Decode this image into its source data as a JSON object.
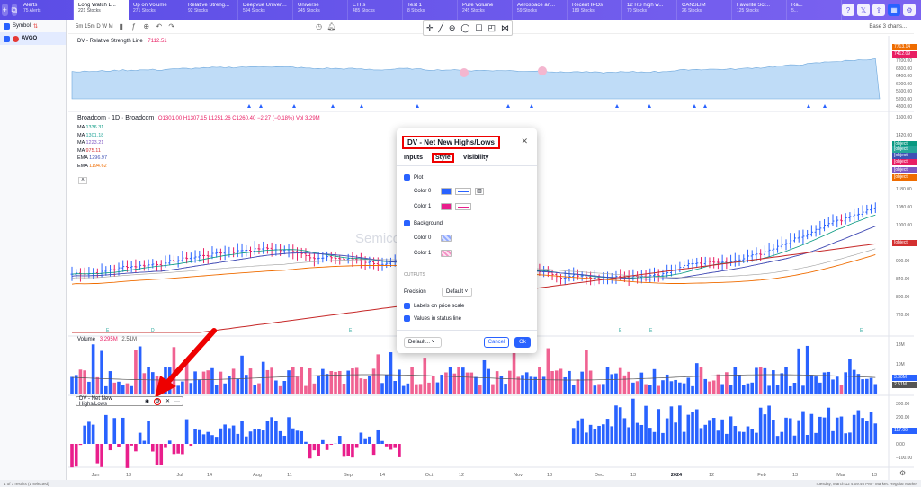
{
  "topbar": {
    "tabs": [
      {
        "name": "Alerts",
        "sub": "75 Alerts"
      },
      {
        "name": "Long Watch L...",
        "sub": "221 Stocks",
        "active": true
      },
      {
        "name": "Up on Volume",
        "sub": "271 Stocks"
      },
      {
        "name": "Relative Streng...",
        "sub": "92 Stocks"
      },
      {
        "name": "Deepvue Univers...",
        "sub": "594 Stocks"
      },
      {
        "name": "Universe",
        "sub": "245 Stocks"
      },
      {
        "name": "ETFs",
        "sub": "485 Stocks"
      },
      {
        "name": "Test 1",
        "sub": "8 Stocks"
      },
      {
        "name": "Pure Volume",
        "sub": "245 Stocks"
      },
      {
        "name": "Aerospace an...",
        "sub": "59 Stocks"
      },
      {
        "name": "Recent IPOs",
        "sub": "189 Stocks"
      },
      {
        "name": "12 RS high w...",
        "sub": "70 Stocks"
      },
      {
        "name": "CANSLIM",
        "sub": "26 Stocks"
      },
      {
        "name": "Favorite Scr...",
        "sub": "125 Stocks"
      },
      {
        "name": "Ra...",
        "sub": "5..."
      }
    ]
  },
  "leftpanel": {
    "symbol_label": "Symbol",
    "ticker": "AVGO"
  },
  "charttools": {
    "intervals": "5m  15m  D  W  M",
    "right_label": "Base 3 charts..."
  },
  "rs_pane": {
    "title": "DV - Relative Strength Line",
    "value": "7112.51",
    "ticks": [
      "7200.00",
      "6800.00",
      "6400.00",
      "6000.00",
      "5600.00",
      "5200.00",
      "4800.00"
    ],
    "labels": [
      "7713.14",
      "7412.09"
    ]
  },
  "price_pane": {
    "title": "Broadcom · 1D · Broadcom",
    "ohlc": "O1301.00 H1307.15 L1251.26 C1260.40 −2.27 (−0.18%) Vol 3.29M",
    "mas": [
      {
        "label": "MA",
        "value": "1336.31",
        "color": "#089981"
      },
      {
        "label": "MA",
        "value": "1301.18",
        "color": "#26a69a"
      },
      {
        "label": "MA",
        "value": "1223.21",
        "color": "#7e57c2"
      },
      {
        "label": "MA",
        "value": "975.11",
        "color": "#d32f2f"
      },
      {
        "label": "EMA",
        "value": "1296.97",
        "color": "#3f51b5"
      },
      {
        "label": "EMA",
        "value": "1194.62",
        "color": "#ef6c00"
      }
    ],
    "watermark": "Semiconductor Equipment",
    "ticks": [
      "1500.00",
      "1420.00",
      "1340.00",
      "1260.00",
      "1180.00",
      "1080.00",
      "1000.00",
      "940.00",
      "900.00",
      "840.00",
      "800.00",
      "720.00"
    ],
    "labels": [
      {
        "text": "1336.31",
        "color": "#089981"
      },
      {
        "text": "1301.18",
        "color": "#26a69a"
      },
      {
        "text": "1296.97",
        "color": "#3f51b5"
      },
      {
        "text": "1260.40",
        "color": "#e91e63"
      },
      {
        "text": "1223.21",
        "color": "#7e57c2"
      },
      {
        "text": "1194.62",
        "color": "#ef6c00"
      },
      {
        "text": "975.11",
        "color": "#d32f2f"
      }
    ],
    "earnings_markers": [
      "D",
      "E",
      "E",
      "E",
      "E",
      "E",
      "E",
      "D",
      "E"
    ]
  },
  "volume_pane": {
    "title": "Volume",
    "value": "3.295M",
    "avg": "2.51M",
    "ticks": [
      "18M",
      "10M",
      "5M"
    ],
    "labels": [
      "3.30M",
      "2.51M"
    ]
  },
  "nh_pane": {
    "ticks": [
      "300.00",
      "200.00",
      "100.00",
      "0.00",
      "−100.00"
    ],
    "label": "117.00"
  },
  "ind_legend": {
    "title": "DV - Net New Highs/Lows"
  },
  "xaxis": {
    "labels": [
      "Jun",
      "13",
      "Jul",
      "14",
      "Aug",
      "11",
      "Sep",
      "14",
      "Oct",
      "12",
      "Nov",
      "13",
      "Dec",
      "13",
      "2024",
      "12",
      "Feb",
      "13",
      "Mar",
      "13"
    ]
  },
  "dialog": {
    "title": "DV - Net New Highs/Lows",
    "tabs": [
      "Inputs",
      "Style",
      "Visibility"
    ],
    "plot_label": "Plot",
    "color0": "Color 0",
    "color1": "Color 1",
    "background_label": "Background",
    "outputs_label": "OUTPUTS",
    "precision_label": "Precision",
    "precision_value": "Default",
    "labels_price_scale": "Labels on price scale",
    "values_status_line": "Values in status line",
    "default_btn": "Default...",
    "cancel_btn": "Cancel",
    "ok_btn": "Ok"
  },
  "statusbar": {
    "left": "1 of 1 results (1 selected)",
    "right": "Tuesday, March 12 4:09:46 PM · Market: Regular Market"
  },
  "colors": {
    "accent": "#2962ff",
    "up": "#2962ff",
    "down": "#e91e63",
    "annotation": "#e00000"
  }
}
